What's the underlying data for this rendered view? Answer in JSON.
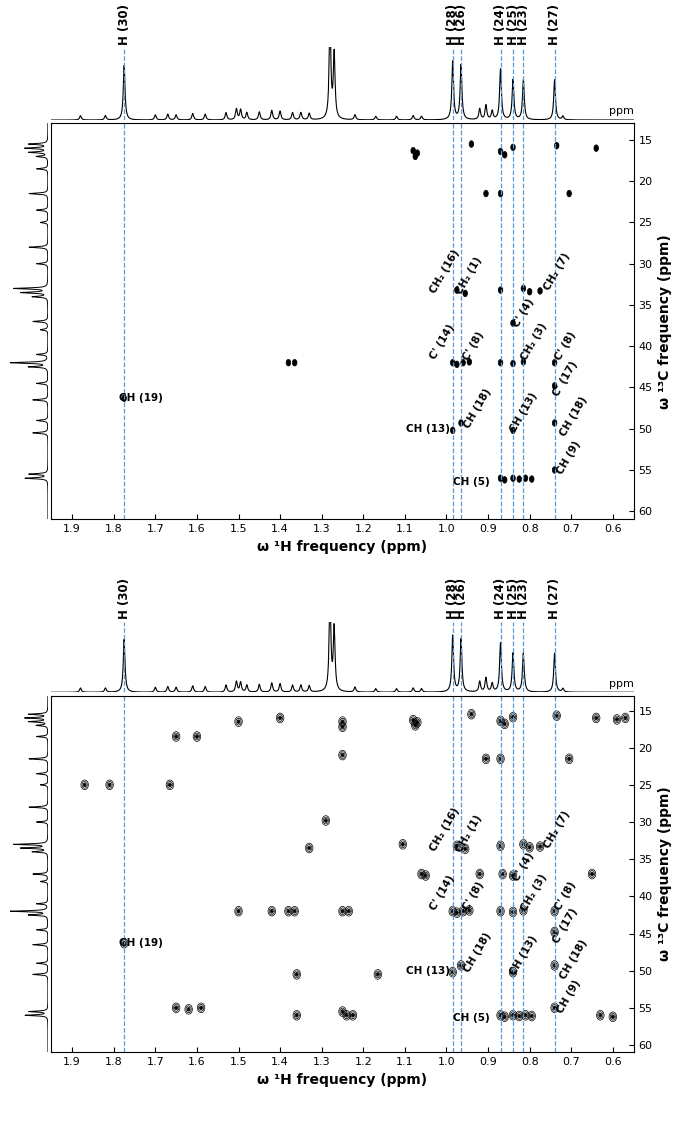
{
  "chart_data": [
    {
      "type": "contour",
      "x_label": "ω ¹H frequency (ppm)",
      "y_label": "ω ¹³C frequency (ppm)",
      "strip_unit": "ppm",
      "xlim": [
        1.95,
        0.55
      ],
      "xticks": [
        1.9,
        1.8,
        1.7,
        1.6,
        1.5,
        1.4,
        1.3,
        1.2,
        1.1,
        {
          "value": 1.0,
          "label": "1.0"
        },
        0.9,
        0.8,
        0.7,
        0.6
      ],
      "ylim": [
        61,
        13
      ],
      "yticks": [
        15,
        20,
        25,
        30,
        35,
        40,
        45,
        50,
        55,
        60
      ],
      "height_range": [
        0,
        1
      ],
      "guides": [
        {
          "label": "H (30)",
          "x": 1.775
        },
        {
          "label": "H (28)",
          "x": 0.985
        },
        {
          "label": "H (26)",
          "x": 0.965
        },
        {
          "label": "H (24)",
          "x": 0.87
        },
        {
          "label": "H (25)",
          "x": 0.84
        },
        {
          "label": "H (23)",
          "x": 0.815
        },
        {
          "label": "H (27)",
          "x": 0.74
        }
      ],
      "proton_spectrum": {
        "x": [
          1.775,
          1.28,
          1.27,
          0.985,
          0.965,
          0.87,
          0.84,
          0.815,
          0.74,
          0.92,
          0.905,
          0.89,
          1.88,
          1.82,
          1.7,
          1.67,
          1.65,
          1.61,
          1.58,
          1.53,
          1.505,
          1.495,
          1.48,
          1.45,
          1.42,
          1.4,
          1.37,
          1.35,
          1.33,
          1.22,
          1.17,
          1.12,
          1.08,
          1.06,
          0.72
        ],
        "height": [
          0.75,
          1.3,
          0.9,
          0.8,
          0.75,
          0.7,
          0.55,
          0.55,
          0.55,
          0.15,
          0.2,
          0.12,
          0.06,
          0.06,
          0.07,
          0.08,
          0.07,
          0.09,
          0.08,
          0.1,
          0.15,
          0.14,
          0.1,
          0.11,
          0.13,
          0.12,
          0.1,
          0.1,
          0.09,
          0.07,
          0.05,
          0.05,
          0.06,
          0.05,
          0.05
        ]
      },
      "carbon_spectrum": {
        "y": [
          15.5,
          16,
          16.5,
          17,
          18.5,
          21.5,
          23.5,
          25,
          28,
          30,
          33,
          33.5,
          34,
          37,
          38,
          41,
          42,
          42.5,
          44.5,
          46.5,
          49,
          50.5,
          55.5,
          56
        ],
        "height": [
          0.5,
          0.6,
          0.5,
          0.3,
          0.3,
          0.5,
          0.3,
          0.2,
          0.5,
          0.3,
          0.9,
          0.7,
          0.4,
          0.4,
          0.2,
          0.3,
          1.0,
          0.5,
          0.3,
          0.4,
          0.3,
          0.4,
          0.5,
          0.6
        ]
      },
      "peaks": {
        "x": [
          1.08,
          1.075,
          1.07,
          0.94,
          0.87,
          0.86,
          0.84,
          0.735,
          0.64,
          0.905,
          0.87,
          0.705,
          0.975,
          0.955,
          0.87,
          0.815,
          0.8,
          0.775,
          0.84,
          1.38,
          1.365,
          0.985,
          0.975,
          0.96,
          0.945,
          0.87,
          0.84,
          0.815,
          0.74,
          1.775,
          0.74,
          0.985,
          0.965,
          0.84,
          0.74,
          0.87,
          0.86,
          0.84,
          0.825,
          0.81,
          0.795,
          0.74
        ],
        "y": [
          16.3,
          17.0,
          16.6,
          15.5,
          16.4,
          16.8,
          15.9,
          15.7,
          16.0,
          21.5,
          21.5,
          21.5,
          33.2,
          33.6,
          33.2,
          33.0,
          33.4,
          33.3,
          37.2,
          42.0,
          42.0,
          42.0,
          42.2,
          42.0,
          41.9,
          42.0,
          42.1,
          41.9,
          42.0,
          46.3,
          44.8,
          50.2,
          49.3,
          50.2,
          49.3,
          56.0,
          56.2,
          56.0,
          56.1,
          56.0,
          56.1,
          55.0
        ]
      },
      "annotations": [
        {
          "text": "CH₂ (16)",
          "x": 1.005,
          "y": 31.0
        },
        {
          "text": "CH₂ (1)",
          "x": 0.945,
          "y": 31.5
        },
        {
          "text": "CH₂ (7)",
          "x": 0.735,
          "y": 31.0
        },
        {
          "text": "C' (4)",
          "x": 0.815,
          "y": 36.0
        },
        {
          "text": "C' (14)",
          "x": 1.01,
          "y": 39.5
        },
        {
          "text": "C' (8)",
          "x": 0.935,
          "y": 40.0
        },
        {
          "text": "CH₂ (3)",
          "x": 0.79,
          "y": 39.5
        },
        {
          "text": "C' (8)",
          "x": 0.715,
          "y": 40.0
        },
        {
          "text": "C' (17)",
          "x": 0.715,
          "y": 44.0
        },
        {
          "text": "CH (19)",
          "x": 1.735,
          "y": 46.3
        },
        {
          "text": "CH (13)",
          "x": 1.045,
          "y": 50.0
        },
        {
          "text": "CH (18)",
          "x": 0.925,
          "y": 47.5
        },
        {
          "text": "CH (13)",
          "x": 0.815,
          "y": 48.0
        },
        {
          "text": "CH (18)",
          "x": 0.695,
          "y": 48.5
        },
        {
          "text": "CH (5)",
          "x": 0.94,
          "y": 56.4
        },
        {
          "text": "CH (9)",
          "x": 0.705,
          "y": 53.5
        }
      ]
    },
    {
      "type": "contour",
      "x_label": "ω ¹H frequency (ppm)",
      "y_label": "ω ¹³C frequency (ppm)",
      "strip_unit": "ppm",
      "xlim": [
        1.95,
        0.55
      ],
      "xticks": [
        1.9,
        1.8,
        1.7,
        1.6,
        1.5,
        1.4,
        1.3,
        1.2,
        1.1,
        {
          "value": 1.0,
          "label": "1.0"
        },
        0.9,
        0.8,
        0.7,
        0.6
      ],
      "ylim": [
        61,
        13
      ],
      "yticks": [
        15,
        20,
        25,
        30,
        35,
        40,
        45,
        50,
        55,
        60
      ],
      "height_range": [
        0,
        1
      ],
      "guides": [
        {
          "label": "H (30)",
          "x": 1.775
        },
        {
          "label": "H (28)",
          "x": 0.985
        },
        {
          "label": "H (26)",
          "x": 0.965
        },
        {
          "label": "H (24)",
          "x": 0.87
        },
        {
          "label": "H (25)",
          "x": 0.84
        },
        {
          "label": "H (23)",
          "x": 0.815
        },
        {
          "label": "H (27)",
          "x": 0.74
        }
      ],
      "proton_spectrum": {
        "x": [
          1.775,
          1.28,
          1.27,
          0.985,
          0.965,
          0.87,
          0.84,
          0.815,
          0.74,
          0.92,
          0.905,
          0.89,
          1.88,
          1.82,
          1.7,
          1.67,
          1.65,
          1.61,
          1.58,
          1.53,
          1.505,
          1.495,
          1.48,
          1.45,
          1.42,
          1.4,
          1.37,
          1.35,
          1.33,
          1.22,
          1.17,
          1.12,
          1.08,
          1.06,
          0.72
        ],
        "height": [
          0.75,
          1.3,
          0.9,
          0.8,
          0.75,
          0.7,
          0.55,
          0.55,
          0.55,
          0.15,
          0.2,
          0.12,
          0.06,
          0.06,
          0.07,
          0.08,
          0.07,
          0.09,
          0.08,
          0.1,
          0.15,
          0.14,
          0.1,
          0.11,
          0.13,
          0.12,
          0.1,
          0.1,
          0.09,
          0.07,
          0.05,
          0.05,
          0.06,
          0.05,
          0.05
        ]
      },
      "carbon_spectrum": {
        "y": [
          15.5,
          16,
          16.5,
          17,
          18.5,
          21.5,
          23.5,
          25,
          28,
          30,
          33,
          33.5,
          34,
          37,
          38,
          41,
          42,
          42.5,
          44.5,
          46.5,
          49,
          50.5,
          55.5,
          56
        ],
        "height": [
          0.5,
          0.6,
          0.5,
          0.3,
          0.3,
          0.5,
          0.3,
          0.2,
          0.5,
          0.3,
          0.9,
          0.7,
          0.4,
          0.4,
          0.2,
          0.3,
          1.0,
          0.5,
          0.3,
          0.4,
          0.3,
          0.4,
          0.5,
          0.6
        ]
      },
      "peaks": {
        "x": [
          1.08,
          1.075,
          1.07,
          0.94,
          0.87,
          0.86,
          0.84,
          0.735,
          0.64,
          0.905,
          0.87,
          0.705,
          0.975,
          0.955,
          0.87,
          0.815,
          0.8,
          0.775,
          0.84,
          1.38,
          1.365,
          0.985,
          0.975,
          0.96,
          0.945,
          0.87,
          0.84,
          0.815,
          0.74,
          1.775,
          0.74,
          0.985,
          0.965,
          0.84,
          0.74,
          0.87,
          0.86,
          0.84,
          0.825,
          0.81,
          0.795,
          0.74,
          1.87,
          1.81,
          1.665,
          1.65,
          1.62,
          1.59,
          1.36,
          1.25,
          1.24,
          1.225,
          1.5,
          1.42,
          1.25,
          1.235,
          1.36,
          1.165,
          1.29,
          1.33,
          1.25,
          1.25,
          1.4,
          1.5,
          1.6,
          1.65,
          1.25,
          1.06,
          1.05,
          1.105,
          0.92,
          0.65,
          0.63,
          0.6,
          0.57,
          0.59,
          0.865
        ],
        "y": [
          16.3,
          17.0,
          16.6,
          15.5,
          16.4,
          16.8,
          15.9,
          15.7,
          16.0,
          21.5,
          21.5,
          21.5,
          33.2,
          33.6,
          33.2,
          33.0,
          33.4,
          33.3,
          37.2,
          42.0,
          42.0,
          42.0,
          42.2,
          42.0,
          41.9,
          42.0,
          42.1,
          41.9,
          42.0,
          46.3,
          44.8,
          50.2,
          49.3,
          50.2,
          49.3,
          56.0,
          56.2,
          56.0,
          56.1,
          56.0,
          56.1,
          55.0,
          25.0,
          25.0,
          25.0,
          55.0,
          55.2,
          55.0,
          56.0,
          55.5,
          56.0,
          56.0,
          42.0,
          42.0,
          42.0,
          42.0,
          50.5,
          50.5,
          29.8,
          33.5,
          16.5,
          17.2,
          16.0,
          16.5,
          18.5,
          18.5,
          21.0,
          37.0,
          37.2,
          33.0,
          37.0,
          37.0,
          56.0,
          56.2,
          16.0,
          16.2,
          37.0
        ]
      },
      "annotations": [
        {
          "text": "CH₂ (16)",
          "x": 1.005,
          "y": 31.0
        },
        {
          "text": "CH₂ (1)",
          "x": 0.945,
          "y": 31.5
        },
        {
          "text": "CH₂ (7)",
          "x": 0.735,
          "y": 31.0
        },
        {
          "text": "C' (4)",
          "x": 0.815,
          "y": 36.0
        },
        {
          "text": "C' (14)",
          "x": 1.01,
          "y": 39.5
        },
        {
          "text": "C' (8)",
          "x": 0.935,
          "y": 40.0
        },
        {
          "text": "CH₂ (3)",
          "x": 0.79,
          "y": 39.5
        },
        {
          "text": "C' (8)",
          "x": 0.715,
          "y": 40.0
        },
        {
          "text": "C' (17)",
          "x": 0.715,
          "y": 44.0
        },
        {
          "text": "CH (19)",
          "x": 1.735,
          "y": 46.3
        },
        {
          "text": "CH (13)",
          "x": 1.045,
          "y": 50.0
        },
        {
          "text": "CH (18)",
          "x": 0.925,
          "y": 47.5
        },
        {
          "text": "CH (13)",
          "x": 0.815,
          "y": 48.0
        },
        {
          "text": "CH (18)",
          "x": 0.695,
          "y": 48.5
        },
        {
          "text": "CH (5)",
          "x": 0.94,
          "y": 56.4
        },
        {
          "text": "CH (9)",
          "x": 0.705,
          "y": 53.5
        }
      ]
    }
  ]
}
